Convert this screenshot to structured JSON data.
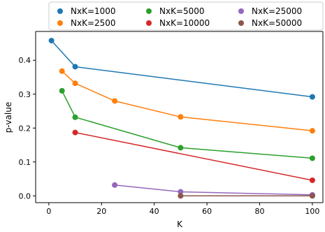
{
  "chart_data": {
    "type": "line",
    "xlabel": "K",
    "ylabel": "p-value",
    "xlim": [
      -5,
      104
    ],
    "ylim": [
      -0.02,
      0.485
    ],
    "xticks": [
      0,
      20,
      40,
      60,
      80,
      100
    ],
    "yticks": [
      0.0,
      0.1,
      0.2,
      0.3,
      0.4
    ],
    "xtick_labels": [
      "0",
      "20",
      "40",
      "60",
      "80",
      "100"
    ],
    "ytick_labels": [
      "0.0",
      "0.1",
      "0.2",
      "0.3",
      "0.4"
    ],
    "grid": false,
    "legend": {
      "placement": "top",
      "columns": 3
    },
    "series": [
      {
        "name": "NxK=1000",
        "color": "#1f77b4",
        "points": [
          [
            1,
            0.458
          ],
          [
            10,
            0.381
          ],
          [
            100,
            0.292
          ]
        ]
      },
      {
        "name": "NxK=2500",
        "color": "#ff7f0e",
        "points": [
          [
            5,
            0.368
          ],
          [
            10,
            0.332
          ],
          [
            25,
            0.28
          ],
          [
            50,
            0.233
          ],
          [
            100,
            0.192
          ]
        ]
      },
      {
        "name": "NxK=5000",
        "color": "#2ca02c",
        "points": [
          [
            5,
            0.31
          ],
          [
            10,
            0.232
          ],
          [
            50,
            0.142
          ],
          [
            100,
            0.111
          ]
        ]
      },
      {
        "name": "NxK=10000",
        "color": "#d62728",
        "points": [
          [
            10,
            0.187
          ],
          [
            100,
            0.046
          ]
        ]
      },
      {
        "name": "NxK=25000",
        "color": "#9467bd",
        "points": [
          [
            25,
            0.032
          ],
          [
            50,
            0.012
          ],
          [
            100,
            0.003
          ]
        ]
      },
      {
        "name": "NxK=50000",
        "color": "#8c564b",
        "points": [
          [
            50,
            0.0
          ],
          [
            100,
            0.0
          ]
        ]
      }
    ]
  }
}
